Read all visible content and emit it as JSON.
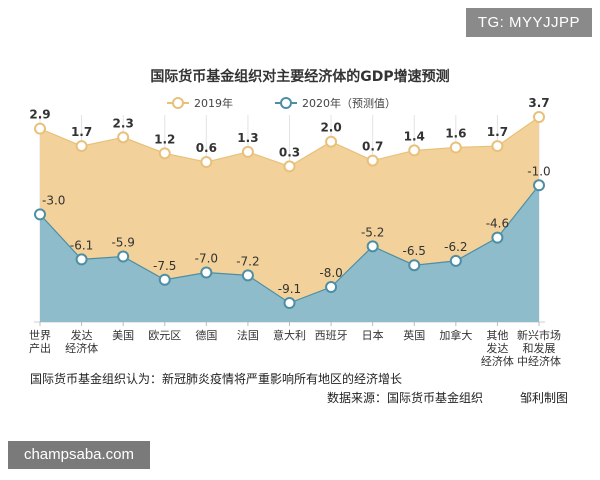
{
  "watermark_top": "TG: MYYJJPP",
  "watermark_bottom": "champsaba.com",
  "notes": {
    "line1": "国际货币基金组织认为：新冠肺炎疫情将严重影响所有地区的经济增长",
    "source": "数据来源：国际货币基金组织",
    "author": "邹利制图"
  },
  "colors": {
    "series_2019": "#f2d29a",
    "series_2019_line": "#e9c07a",
    "series_2020": "#8fbccb",
    "series_2020_line": "#4d8ea4",
    "title": "#333333"
  },
  "chart_data": {
    "type": "area",
    "title": "国际货币基金组织对主要经济体的GDP增速预测",
    "categories": [
      [
        "世界",
        "产出"
      ],
      [
        "发达",
        "经济体"
      ],
      [
        "美国"
      ],
      [
        "欧元区"
      ],
      [
        "德国"
      ],
      [
        "法国"
      ],
      [
        "意大利"
      ],
      [
        "西班牙"
      ],
      [
        "日本"
      ],
      [
        "英国"
      ],
      [
        "加拿大"
      ],
      [
        "其他",
        "发达",
        "经济体"
      ],
      [
        "新兴市场",
        "和发展",
        "中经济体"
      ]
    ],
    "series": [
      {
        "name": "2019年",
        "values": [
          2.9,
          1.7,
          2.3,
          1.2,
          0.6,
          1.3,
          0.3,
          2.0,
          0.7,
          1.4,
          1.6,
          1.7,
          3.7
        ]
      },
      {
        "name": "2020年（预测值）",
        "values": [
          -3.0,
          -6.1,
          -5.9,
          -7.5,
          -7.0,
          -7.2,
          -9.1,
          -8.0,
          -5.2,
          -6.5,
          -6.2,
          -4.6,
          -1.0
        ]
      }
    ],
    "labels_2019": [
      "2.9",
      "1.7",
      "2.3",
      "1.2",
      "0.6",
      "1.3",
      "0.3",
      "2.0",
      "0.7",
      "1.4",
      "1.6",
      "1.7",
      "3.7"
    ],
    "labels_2020": [
      "-3.0",
      "-6.1",
      "-5.9",
      "-7.5",
      "-7.0",
      "-7.2",
      "-9.1",
      "-8.0",
      "-5.2",
      "-6.5",
      "-6.2",
      "-4.6",
      "-1.0"
    ],
    "grid": true,
    "legend": "top-center"
  }
}
